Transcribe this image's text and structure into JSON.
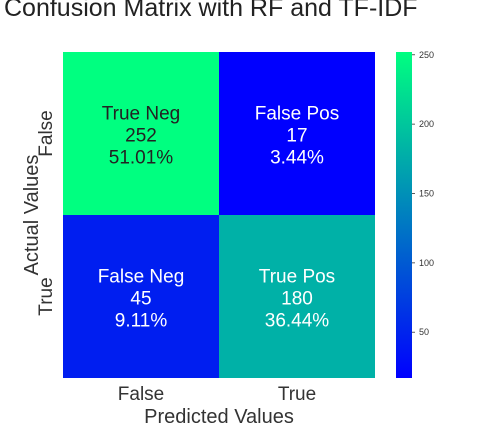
{
  "chart_data": {
    "type": "heatmap",
    "title": "Confusion Matrix with RF and TF-IDF",
    "xlabel": "Predicted Values",
    "ylabel": "Actual Values",
    "x_categories": [
      "False",
      "True"
    ],
    "y_categories": [
      "False",
      "True"
    ],
    "values": [
      [
        252,
        17
      ],
      [
        45,
        180
      ]
    ],
    "cell_labels": [
      [
        [
          "True Neg",
          "252",
          "51.01%"
        ],
        [
          "False Pos",
          "17",
          "3.44%"
        ]
      ],
      [
        [
          "False Neg",
          "45",
          "9.11%"
        ],
        [
          "True Pos",
          "180",
          "36.44%"
        ]
      ]
    ],
    "colormap": "winter",
    "colors": {
      "low": "#0000ff",
      "high": "#00ff80",
      "text_dark": "#222222",
      "text_light": "#ffffff"
    },
    "colorbar": {
      "ticks": [
        50,
        100,
        150,
        200,
        250
      ],
      "range": [
        17,
        252
      ]
    },
    "grid": false
  }
}
